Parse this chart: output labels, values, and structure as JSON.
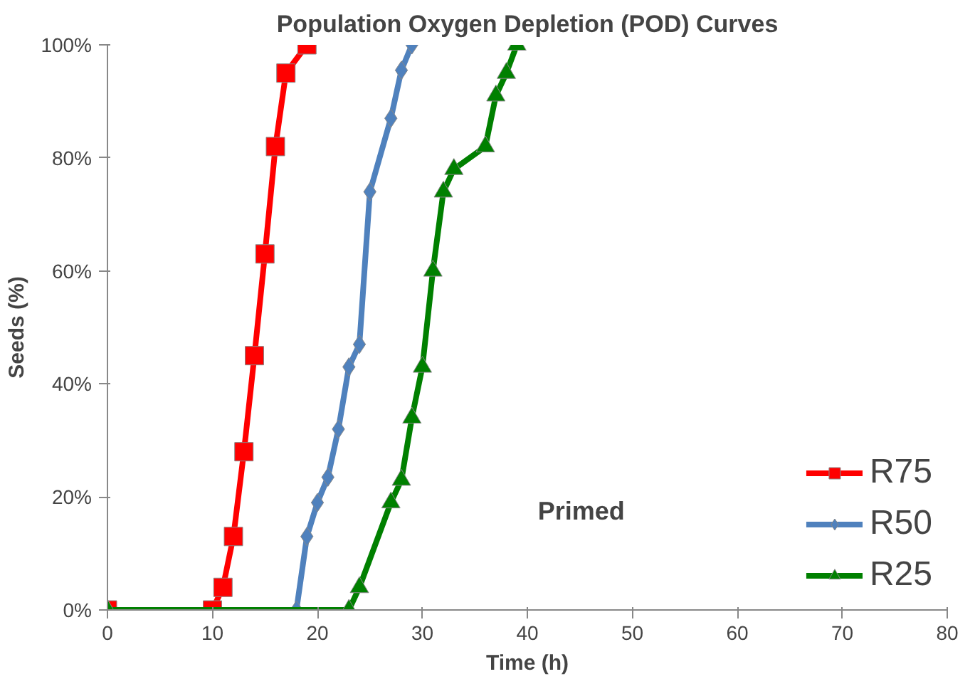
{
  "chart_data": {
    "type": "line",
    "title": "Population Oxygen Depletion (POD) Curves",
    "xlabel": "Time (h)",
    "ylabel": "Seeds (%)",
    "series": [
      {
        "name": "R75",
        "color": "#ff0000",
        "marker": "square",
        "x": [
          0,
          10,
          11,
          12,
          13,
          14,
          15,
          16,
          17,
          19
        ],
        "values": [
          0,
          0,
          4,
          13,
          28,
          45,
          63,
          82,
          95,
          100
        ]
      },
      {
        "name": "R50",
        "color": "#4f81bd",
        "marker": "diamond",
        "x": [
          0,
          18,
          19,
          20,
          21,
          22,
          23,
          24,
          25,
          27,
          28,
          29
        ],
        "values": [
          0,
          0,
          13,
          19,
          23.5,
          32,
          43,
          47,
          74,
          87,
          95.5,
          100
        ]
      },
      {
        "name": "R25",
        "color": "#008000",
        "marker": "triangle",
        "x": [
          0,
          23,
          24,
          27,
          28,
          29,
          30,
          31,
          32,
          33,
          36,
          37,
          38,
          39
        ],
        "values": [
          0,
          0,
          4,
          19,
          23,
          34,
          43,
          60,
          74,
          78,
          82,
          91,
          95,
          100
        ]
      }
    ],
    "xlim": [
      0,
      80
    ],
    "xticks": [
      0,
      10,
      20,
      30,
      40,
      50,
      60,
      70,
      80
    ],
    "ylim": [
      0,
      100
    ],
    "yticks": [
      {
        "value": 0,
        "label": "0%"
      },
      {
        "value": 20,
        "label": "20%"
      },
      {
        "value": 40,
        "label": "40%"
      },
      {
        "value": 60,
        "label": "60%"
      },
      {
        "value": 80,
        "label": "80%"
      },
      {
        "value": 100,
        "label": "100%"
      }
    ],
    "annotations": [
      "Primed"
    ],
    "legend": "bottom right",
    "grid": false,
    "line_style": "solid"
  }
}
